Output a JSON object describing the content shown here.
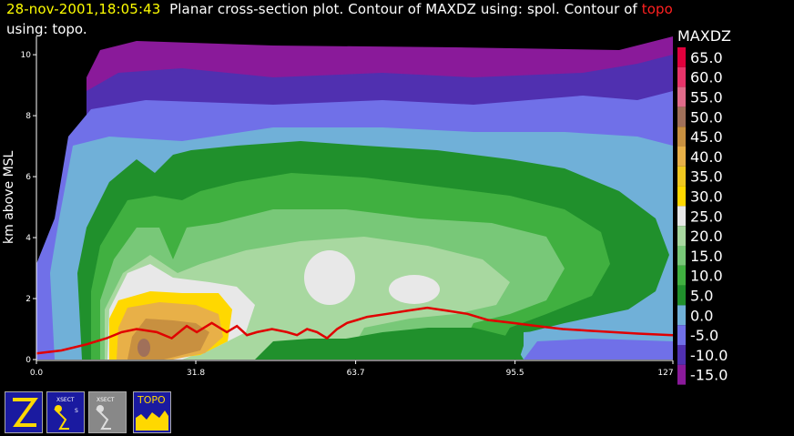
{
  "header": {
    "timestamp": "28-nov-2001,18:05:43",
    "title_main": "Planar cross-section plot.  Contour of MAXDZ using: spol.  Contour of ",
    "title_topo_word": "topo",
    "title_line2": "using: topo."
  },
  "colors": {
    "background": "#000000",
    "timestamp": "#ffff00",
    "topo_line": "#e00000"
  },
  "legend": {
    "title": "MAXDZ",
    "entries": [
      {
        "label": "65.0",
        "color": "#e0003c"
      },
      {
        "label": "60.0",
        "color": "#e8346a"
      },
      {
        "label": "55.0",
        "color": "#e06b8a"
      },
      {
        "label": "50.0",
        "color": "#a0705a"
      },
      {
        "label": "45.0",
        "color": "#c89040"
      },
      {
        "label": "40.0",
        "color": "#e8b048"
      },
      {
        "label": "35.0",
        "color": "#f0c820"
      },
      {
        "label": "30.0",
        "color": "#ffd800"
      },
      {
        "label": "25.0",
        "color": "#e8e8e8"
      },
      {
        "label": "20.0",
        "color": "#a8d8a0"
      },
      {
        "label": "15.0",
        "color": "#78c878"
      },
      {
        "label": "10.0",
        "color": "#40b040"
      },
      {
        "label": "5.0",
        "color": "#20902c"
      },
      {
        "label": "0.0",
        "color": "#70b0d8"
      },
      {
        "label": "-5.0",
        "color": "#7070e8"
      },
      {
        "label": "-10.0",
        "color": "#5030b0"
      },
      {
        "label": "-15.0",
        "color": "#8a1a9a"
      }
    ]
  },
  "icons": [
    {
      "name": "zoom-icon",
      "label": "Z"
    },
    {
      "name": "xsect-spol-icon",
      "label": "XSECT SPOL"
    },
    {
      "name": "xsect-spol-grey-icon",
      "label": "XSECT SPOL"
    },
    {
      "name": "topo-icon",
      "label": "TOPO"
    }
  ],
  "chart_data": {
    "type": "heatmap",
    "title": "Planar cross-section plot.  Contour of MAXDZ using: spol.  Contour of topo using: topo.",
    "xlabel": "",
    "ylabel": "km above MSL",
    "x_ticks": [
      "0.0",
      "31.8",
      "63.7",
      "95.5",
      "127"
    ],
    "y_ticks": [
      "0",
      "2",
      "4",
      "6",
      "8",
      "10"
    ],
    "xlim": [
      0,
      127
    ],
    "ylim": [
      0,
      10.6
    ],
    "field": "MAXDZ",
    "colorbar_levels": [
      65.0,
      60.0,
      55.0,
      50.0,
      45.0,
      40.0,
      35.0,
      30.0,
      25.0,
      20.0,
      15.0,
      10.0,
      5.0,
      0.0,
      -5.0,
      -10.0,
      -15.0
    ],
    "topo_line": {
      "x": [
        0,
        5,
        10,
        14,
        17,
        20,
        24,
        27,
        30,
        32,
        35,
        38,
        40,
        42,
        44,
        47,
        50,
        52,
        54,
        56,
        58,
        60,
        62,
        64,
        66,
        70,
        74,
        78,
        82,
        86,
        90,
        95,
        100,
        105,
        110,
        115,
        120,
        127
      ],
      "y": [
        0.2,
        0.3,
        0.5,
        0.7,
        0.9,
        1.0,
        0.9,
        0.7,
        1.1,
        0.9,
        1.2,
        0.9,
        1.1,
        0.8,
        0.9,
        1.0,
        0.9,
        0.8,
        1.0,
        0.9,
        0.7,
        1.0,
        1.2,
        1.3,
        1.4,
        1.5,
        1.6,
        1.7,
        1.6,
        1.5,
        1.3,
        1.2,
        1.1,
        1.0,
        0.95,
        0.9,
        0.85,
        0.8
      ]
    }
  }
}
